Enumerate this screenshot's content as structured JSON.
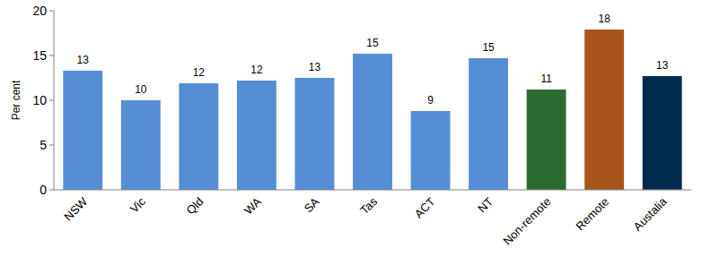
{
  "chart_data": {
    "type": "bar",
    "y_label": "Per cent",
    "categories": [
      "NSW",
      "Vic",
      "Qld",
      "WA",
      "SA",
      "Tas",
      "ACT",
      "NT",
      "Non-remote",
      "Remote",
      "Austalia"
    ],
    "values": [
      13.3,
      10.0,
      11.9,
      12.2,
      12.5,
      15.2,
      8.8,
      14.7,
      11.2,
      17.9,
      12.7
    ],
    "value_labels": [
      "13",
      "10",
      "12",
      "12",
      "13",
      "15",
      "9",
      "15",
      "11",
      "18",
      "13"
    ],
    "colors": [
      "#558ed5",
      "#558ed5",
      "#558ed5",
      "#558ed5",
      "#558ed5",
      "#558ed5",
      "#558ed5",
      "#558ed5",
      "#2c6b2f",
      "#a8541b",
      "#002a4e"
    ],
    "ylim": [
      0,
      20
    ],
    "yticks": [
      0,
      5,
      10,
      15,
      20
    ],
    "grid": false,
    "data_labels": true
  }
}
